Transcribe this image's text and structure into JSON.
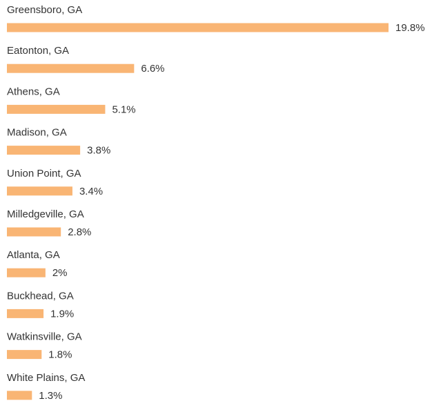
{
  "chart_data": {
    "type": "bar",
    "orientation": "horizontal",
    "categories": [
      "Greensboro, GA",
      "Eatonton, GA",
      "Athens, GA",
      "Madison, GA",
      "Union Point, GA",
      "Milledgeville, GA",
      "Atlanta, GA",
      "Buckhead, GA",
      "Watkinsville, GA",
      "White Plains, GA"
    ],
    "values": [
      19.8,
      6.6,
      5.1,
      3.8,
      3.4,
      2.8,
      2,
      1.9,
      1.8,
      1.3
    ],
    "value_labels": [
      "19.8%",
      "6.6%",
      "5.1%",
      "3.8%",
      "3.4%",
      "2.8%",
      "2%",
      "1.9%",
      "1.8%",
      "1.3%"
    ],
    "color": "#f9b574"
  }
}
